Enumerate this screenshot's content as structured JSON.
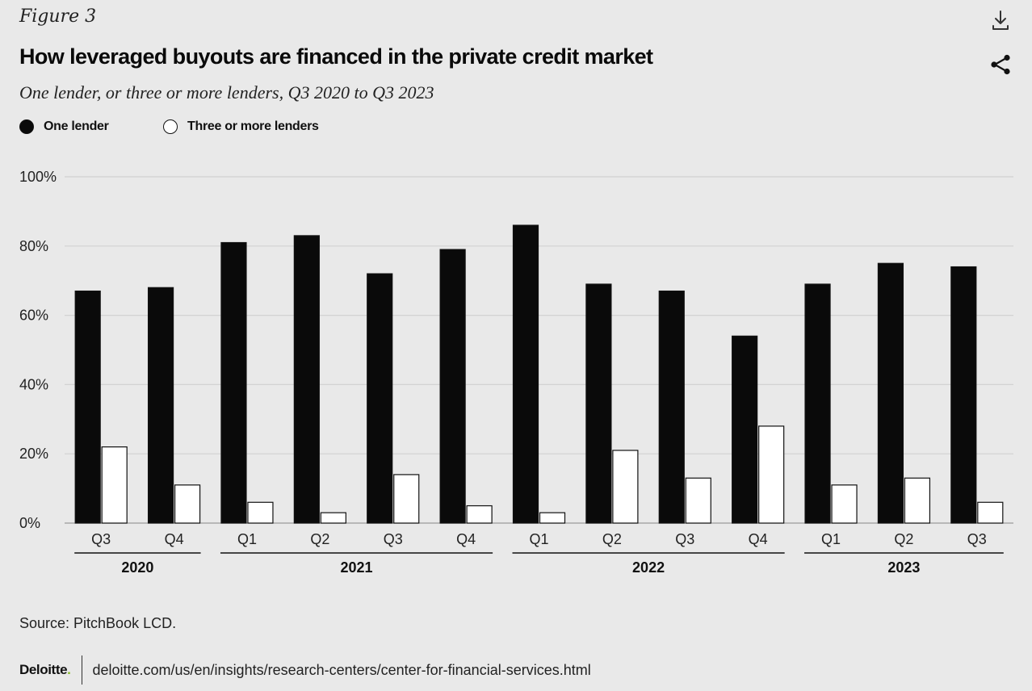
{
  "header": {
    "figure_label": "Figure 3",
    "title": "How leveraged buyouts are financed in the private credit market",
    "subtitle": "One lender, or three or more lenders, Q3 2020 to Q3 2023"
  },
  "toolbar": {
    "download_icon": "download-icon",
    "share_icon": "share-icon"
  },
  "legend": [
    {
      "label": "One lender",
      "color": "#0a0a0a"
    },
    {
      "label": "Three or more lenders",
      "color": "#ffffff"
    }
  ],
  "chart_data": {
    "type": "bar",
    "categories": [
      "Q3",
      "Q4",
      "Q1",
      "Q2",
      "Q3",
      "Q4",
      "Q1",
      "Q2",
      "Q3",
      "Q4",
      "Q1",
      "Q2",
      "Q3"
    ],
    "groups": [
      {
        "label": "2020",
        "quarters": [
          "Q3",
          "Q4"
        ]
      },
      {
        "label": "2021",
        "quarters": [
          "Q1",
          "Q2",
          "Q3",
          "Q4"
        ]
      },
      {
        "label": "2022",
        "quarters": [
          "Q1",
          "Q2",
          "Q3",
          "Q4"
        ]
      },
      {
        "label": "2023",
        "quarters": [
          "Q1",
          "Q2",
          "Q3"
        ]
      }
    ],
    "series": [
      {
        "name": "One lender",
        "color": "#0a0a0a",
        "values": [
          67,
          68,
          81,
          83,
          72,
          79,
          86,
          69,
          67,
          54,
          69,
          75,
          74
        ]
      },
      {
        "name": "Three or more lenders",
        "color": "#ffffff",
        "values": [
          22,
          11,
          6,
          3,
          14,
          5,
          3,
          21,
          13,
          28,
          11,
          13,
          6
        ]
      }
    ],
    "y_ticks": [
      "0%",
      "20%",
      "40%",
      "60%",
      "80%",
      "100%"
    ],
    "ylim": [
      0,
      100
    ],
    "grid": true,
    "legend_position": "top-left"
  },
  "footer": {
    "source": "Source: PitchBook LCD.",
    "brand": "Deloitte",
    "brand_dot": ".",
    "brand_dot_color": "#86bc25",
    "link": "deloitte.com/us/en/insights/research-centers/center-for-financial-services.html"
  }
}
